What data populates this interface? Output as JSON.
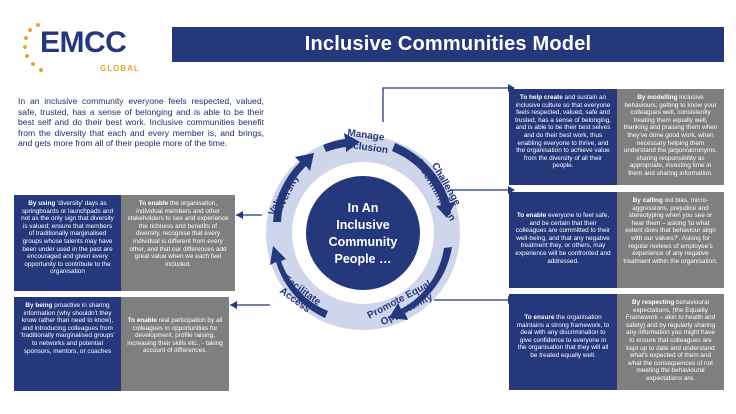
{
  "logo": {
    "name": "EMCC",
    "sub": "GLOBAL"
  },
  "title": "Inclusive Communities Model",
  "intro": "In an inclusive community everyone feels respected, valued, safe, trusted, has a sense of belonging and is able to be their best self and do their best work. Inclusive communities benefit from the diversity that each and every member is, and brings, and gets more from all of their people more of the time.",
  "center": [
    "In An",
    "Inclusive",
    "Community",
    "People …"
  ],
  "cycle": {
    "manage": [
      "Manage",
      "Inclusion"
    ],
    "challenge": [
      "Challenge",
      "Discrimination"
    ],
    "promote": [
      "Promote Equal",
      "Opportunity"
    ],
    "facilitate": [
      "Facilitate",
      "Access"
    ],
    "value": [
      "Value",
      "Diversity"
    ]
  },
  "boxes": {
    "manage_aim": {
      "lead": "To help create",
      "text": " and sustain an inclusive culture so that everyone feels respected, valued, safe and trusted, has a sense of belonging, and is able to be their best selves and do their best work, thus enabling everyone to thrive, and the organisation to achieve value from the diversity of all their people."
    },
    "manage_how": {
      "lead": "By modelling",
      "text": " inclusive behaviours; getting to know your colleagues well, consistently treating them equally well, thanking and praising them when they've done good work, when necessary helping them understand the jargon/acronyms, sharing responsibility as appropriate, investing time in them and sharing information."
    },
    "challenge_aim": {
      "lead": "To enable",
      "text": " everyone to feel safe, and be certain that their colleagues are committed to their well-being, and that any negative treatment they, or others, may experience will be confronted and addressed."
    },
    "challenge_how": {
      "lead": "By calling",
      "text": " out bias, micro-aggressions, prejudice and stereotyping when you see or hear them – asking 'to what extent does that behaviour align with our values?'. Asking for regular reviews of employee's experience of any negative treatment within the organisation."
    },
    "promote_aim": {
      "lead": "To ensure",
      "text": " the organisation maintains a strong framework, to deal with any discrimination to give confidence to everyone in the organisation that they will all be treated equally well."
    },
    "promote_how": {
      "lead": "By respecting",
      "text": " behavioural expectations, (the Equality Framework – akin to health and safety) and by regularly sharing any information you might have to ensure that colleagues are kept up to date and understand what's expected of them and what the consequences of not meeting the behavioural expectations are."
    },
    "value_how": {
      "lead": "By using",
      "text": " 'diversity' days as springboards or launchpads and not as the only sign that diversity is valued; ensure that members of traditionally marginalised groups whose talents may have been under used in the past are encouraged and given every opportunity to contribute to the organisation"
    },
    "value_aim": {
      "lead": "To enable",
      "text": " the organisation, individual members and other stakeholders to see and experience the richness and benefits of diversity, recognise that every individual is different from every other, and that our differences add great value when we each feel included."
    },
    "facilitate_how": {
      "lead": "By being",
      "text": " proactive in sharing information (why shouldn't they know rather than need to know), and introducing colleagues from 'traditionally marginalised groups' to networks and potential sponsors, mentors, or coaches"
    },
    "facilitate_aim": {
      "lead": "To enable",
      "text": " real participation by all colleagues in opportunities for development, profile raising, increasing their skills etc., - taking account of differences."
    }
  },
  "colors": {
    "navy": "#25387c",
    "grey": "#7f7f7f",
    "orange": "#e8a33a",
    "ring": "#cfd5ea"
  }
}
